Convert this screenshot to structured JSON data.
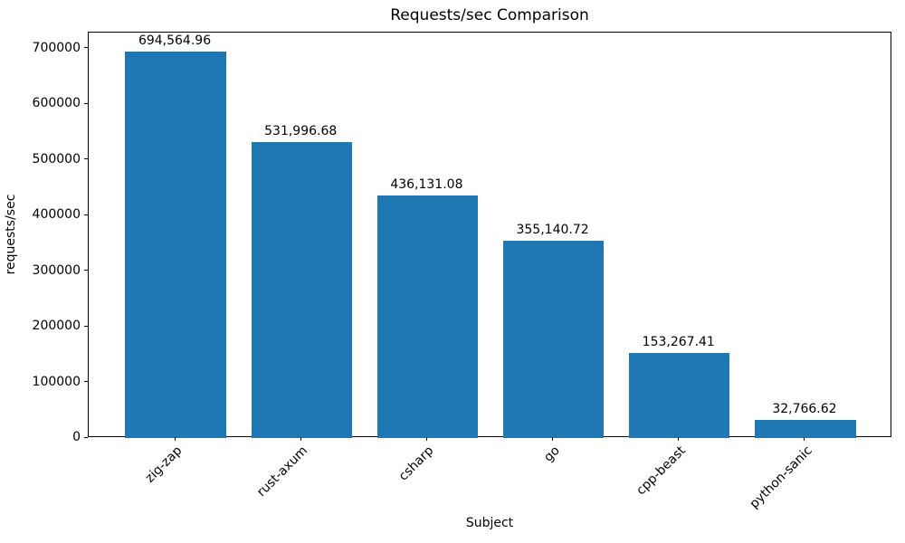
{
  "chart_data": {
    "type": "bar",
    "title": "Requests/sec Comparison",
    "xlabel": "Subject",
    "ylabel": "requests/sec",
    "categories": [
      "zig-zap",
      "rust-axum",
      "csharp",
      "go",
      "cpp-beast",
      "python-sanic"
    ],
    "values": [
      694564.96,
      531996.68,
      436131.08,
      355140.72,
      153267.41,
      32766.62
    ],
    "bar_labels": [
      "694,564.96",
      "531,996.68",
      "436,131.08",
      "355,140.72",
      "153,267.41",
      "32,766.62"
    ],
    "yticks": [
      0,
      100000,
      200000,
      300000,
      400000,
      500000,
      600000,
      700000
    ],
    "ytick_labels": [
      "0",
      "100000",
      "200000",
      "300000",
      "400000",
      "500000",
      "600000",
      "700000"
    ],
    "ylim": [
      0,
      729293
    ],
    "bar_color": "#1f77b4",
    "bar_rel_width": 0.8,
    "grid": false,
    "legend": null,
    "xtick_rotation": 45
  }
}
